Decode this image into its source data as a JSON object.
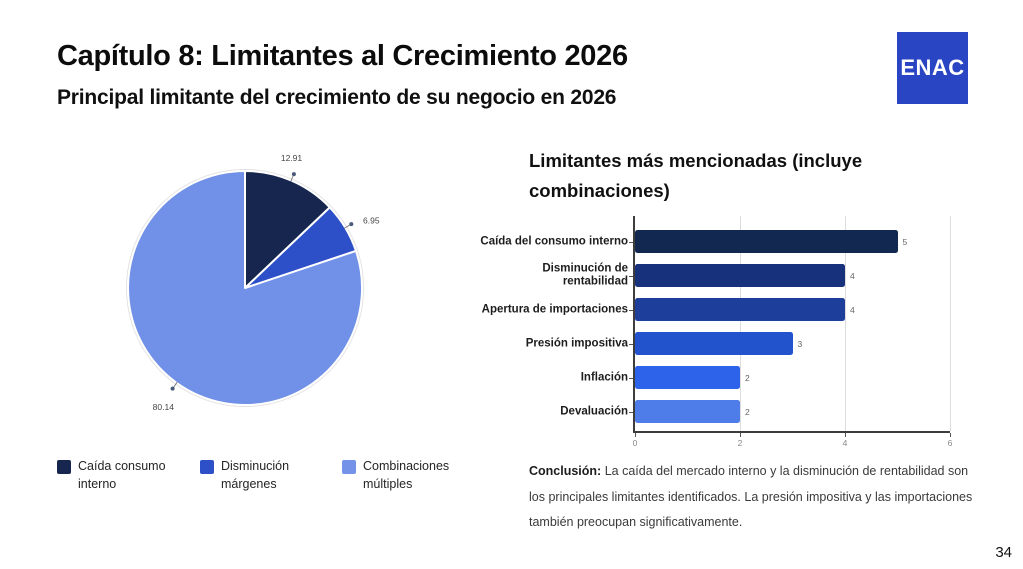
{
  "header": {
    "title": "Capítulo 8: Limitantes al Crecimiento 2026",
    "subtitle": "Principal limitante del crecimiento de su negocio en 2026",
    "logo_text": "ENAC"
  },
  "legend": {
    "items": [
      {
        "label": "Caída consumo interno",
        "color": "#16264f"
      },
      {
        "label": "Disminución márgenes",
        "color": "#2d50c8"
      },
      {
        "label": "Combinaciones múltiples",
        "color": "#7392e8"
      }
    ]
  },
  "conclusion": {
    "label": "Conclusión:",
    "text": " La caída del mercado interno y la disminución de rentabilidad son los principales limitantes identificados. La presión impositiva y las importaciones también preocupan significativamente."
  },
  "footer": {
    "page_number": "34"
  },
  "chart_data": [
    {
      "type": "pie",
      "labels": [
        "Caída consumo interno",
        "Disminución márgenes",
        "Combinaciones múltiples"
      ],
      "values": [
        12.91,
        6.95,
        80.14
      ],
      "value_labels": [
        "12.91",
        "6.95",
        "80.14"
      ],
      "colors": [
        "#16264f",
        "#2d50c8",
        "#7190e7"
      ],
      "start_angle_deg": 0,
      "direction": "clockwise",
      "legend_position": "bottom"
    },
    {
      "type": "bar",
      "orientation": "horizontal",
      "title": "Limitantes más mencionadas (incluye combinaciones)",
      "categories": [
        "Caída del consumo interno",
        "Disminución de\nrentabilidad",
        "Apertura de importaciones",
        "Presión impositiva",
        "Inflación",
        "Devaluación"
      ],
      "values": [
        5,
        4,
        4,
        3,
        2,
        2
      ],
      "colors": [
        "#132850",
        "#17317c",
        "#1d3e9b",
        "#2253cd",
        "#2d63ea",
        "#4e7de9"
      ],
      "xlim": [
        0,
        6
      ],
      "x_ticks": [
        0,
        2,
        4,
        6
      ],
      "grid": true,
      "xlabel": "",
      "ylabel": ""
    }
  ]
}
